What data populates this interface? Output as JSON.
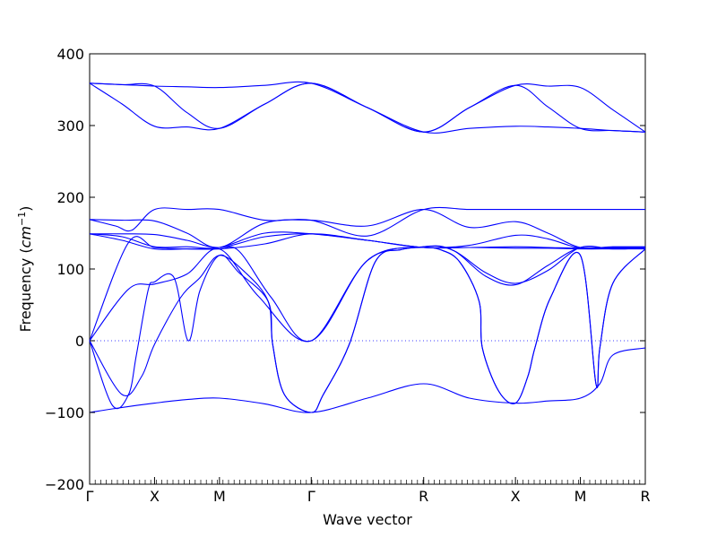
{
  "chart_data": {
    "type": "line",
    "title": "",
    "xlabel": "Wave vector",
    "ylabel_text": "Frequency (",
    "ylabel_unit_base": "cm",
    "ylabel_unit_exp": "−1",
    "ylabel_close": ")",
    "ylim": [
      -200,
      400
    ],
    "yticks": [
      -200,
      -100,
      0,
      100,
      200,
      300,
      400
    ],
    "ytick_labels": [
      "−200",
      "−100",
      "0",
      "100",
      "200",
      "300",
      "400"
    ],
    "xlim": [
      0,
      8.5
    ],
    "kpoints": [
      {
        "label": "Γ",
        "x": 0
      },
      {
        "label": "X",
        "x": 1
      },
      {
        "label": "M",
        "x": 2
      },
      {
        "label": "Γ",
        "x": 3.4142
      },
      {
        "label": "R",
        "x": 5.1463
      },
      {
        "label": "X",
        "x": 6.5605
      },
      {
        "label": "M",
        "x": 7.5605
      },
      {
        "label": "R",
        "x": 8.5605
      }
    ],
    "line_color": "#0000ff",
    "zero_line": {
      "y": 0,
      "style": "dotted"
    },
    "grid": false,
    "legend": "none",
    "series": [
      {
        "x": [
          0,
          0.5,
          1,
          1.5,
          2,
          2.7,
          3.4142,
          4.28,
          5.1463,
          5.85,
          6.5605,
          7.06,
          7.5605,
          8.06,
          8.5605
        ],
        "values": [
          359,
          357,
          355,
          354,
          353,
          356,
          359,
          325,
          291,
          325,
          356,
          355,
          353,
          322,
          291
        ]
      },
      {
        "x": [
          0,
          0.5,
          1,
          1.5,
          2,
          2.7,
          3.4142,
          4.28,
          5.1463,
          5.85,
          6.5605,
          7.06,
          7.5605,
          8.06,
          8.5605
        ],
        "values": [
          359,
          357,
          355,
          318,
          296,
          330,
          359,
          325,
          291,
          325,
          356,
          326,
          296,
          293,
          291
        ]
      },
      {
        "x": [
          0,
          0.5,
          1,
          1.5,
          2,
          2.7,
          3.4142,
          4.28,
          5.1463,
          5.85,
          6.5605,
          7.06,
          7.5605,
          8.06,
          8.5605
        ],
        "values": [
          359,
          330,
          299,
          298,
          296,
          330,
          359,
          325,
          291,
          296,
          299,
          298,
          296,
          293,
          291
        ]
      },
      {
        "x": [
          0,
          0.4,
          0.65,
          1,
          1.5,
          2,
          2.7,
          3.4142,
          4.28,
          5.1463,
          5.85,
          6.5605,
          7.06,
          7.5605,
          8.06,
          8.5605
        ],
        "values": [
          169,
          160,
          154,
          183,
          183,
          183,
          168,
          168,
          146,
          183,
          183,
          183,
          183,
          183,
          183,
          183
        ]
      },
      {
        "x": [
          0,
          0.5,
          1,
          1.5,
          2,
          2.7,
          3.4142,
          4.28,
          5.1463,
          5.85,
          6.5605,
          7.06,
          7.5605,
          8.06,
          8.5605
        ],
        "values": [
          169,
          168,
          167,
          150,
          130,
          164,
          168,
          160,
          183,
          158,
          166,
          150,
          130,
          131,
          131
        ]
      },
      {
        "x": [
          0,
          0.5,
          1,
          1.5,
          2,
          2.7,
          3.4142,
          4.28,
          5.1463,
          5.85,
          6.5605,
          7.06,
          7.5605,
          8.06,
          8.5605
        ],
        "values": [
          149,
          149,
          148,
          140,
          130,
          145,
          149,
          140,
          130,
          133,
          147,
          142,
          129,
          130,
          130
        ]
      },
      {
        "x": [
          0,
          0.5,
          1,
          1.5,
          2,
          2.7,
          3.4142,
          4.28,
          5.1463,
          5.85,
          6.5605,
          7.06,
          7.5605,
          8.06,
          8.5605
        ],
        "values": [
          149,
          145,
          131,
          131,
          130,
          150,
          149,
          140,
          130,
          130,
          131,
          130,
          129,
          129,
          129
        ]
      },
      {
        "x": [
          0,
          0.5,
          1,
          1.5,
          2,
          2.7,
          3.4142,
          4.28,
          5.1463,
          5.85,
          6.5605,
          7.06,
          7.5605,
          8.06,
          8.5605
        ],
        "values": [
          149,
          140,
          128,
          128,
          128,
          135,
          149,
          140,
          130,
          130,
          129,
          129,
          128,
          128,
          128
        ]
      },
      {
        "x": [
          0,
          0.6,
          1,
          1.5,
          2,
          2.3,
          2.8,
          3.4142,
          4.28,
          5.1463,
          5.6,
          6.1,
          6.5605,
          7.06,
          7.5605,
          8.06,
          8.5605
        ],
        "values": [
          0,
          137,
          130,
          128,
          128,
          125,
          60,
          0,
          112,
          131,
          126,
          95,
          80,
          98,
          130,
          128,
          129
        ]
      },
      {
        "x": [
          0,
          0.6,
          1,
          1.5,
          2,
          2.6,
          3.4142,
          4.28,
          5.1463,
          5.6,
          6.1,
          6.5605,
          7.06,
          7.5605,
          8.06,
          8.5605
        ],
        "values": [
          0,
          72,
          79,
          93,
          128,
          62,
          0,
          112,
          131,
          126,
          90,
          78,
          105,
          130,
          128,
          129
        ]
      },
      {
        "x": [
          0,
          0.5,
          0.8,
          1,
          1.4,
          1.7,
          2,
          2.4,
          2.75,
          2.82,
          3.0,
          3.4142,
          3.6,
          4.0,
          4.4,
          4.8,
          5.1463,
          5.4,
          5.7,
          6.0,
          6.05,
          6.3,
          6.5605,
          6.75,
          6.86,
          7.1,
          7.5605,
          7.8,
          7.86,
          8.06,
          8.5605
        ],
        "values": [
          0,
          -75,
          -50,
          -5,
          60,
          88,
          119,
          95,
          55,
          -5,
          -75,
          -100,
          -75,
          -5,
          110,
          127,
          130,
          127,
          110,
          55,
          -10,
          -70,
          -87,
          -50,
          -10,
          60,
          119,
          -60,
          -10,
          80,
          128
        ]
      },
      {
        "x": [
          0,
          0.35,
          0.6,
          0.72,
          0.9,
          1,
          1.3,
          1.52,
          1.7,
          2,
          2.3,
          2.75,
          2.82,
          3.0,
          3.4142,
          3.6,
          4.0,
          4.4,
          4.8,
          5.1463,
          5.4,
          5.7,
          6.0,
          6.05,
          6.3,
          6.5605,
          6.75,
          6.86,
          7.1,
          7.5605,
          7.8,
          7.86,
          8.06,
          8.5605
        ],
        "values": [
          0,
          -90,
          -75,
          -20,
          70,
          82,
          88,
          0,
          70,
          119,
          95,
          55,
          -5,
          -75,
          -100,
          -75,
          -5,
          110,
          127,
          130,
          127,
          110,
          55,
          -10,
          -70,
          -87,
          -50,
          -10,
          60,
          119,
          -60,
          -10,
          80,
          128
        ]
      },
      {
        "x": [
          0,
          0.5,
          1,
          1.5,
          2,
          2.7,
          3.4142,
          4.28,
          5.1463,
          5.85,
          6.5605,
          7.06,
          7.5605,
          7.86,
          8.06,
          8.5605
        ],
        "values": [
          -100,
          -93,
          -87,
          -82,
          -80,
          -88,
          -100,
          -80,
          -60,
          -80,
          -87,
          -84,
          -80,
          -60,
          -20,
          -10
        ]
      }
    ]
  }
}
